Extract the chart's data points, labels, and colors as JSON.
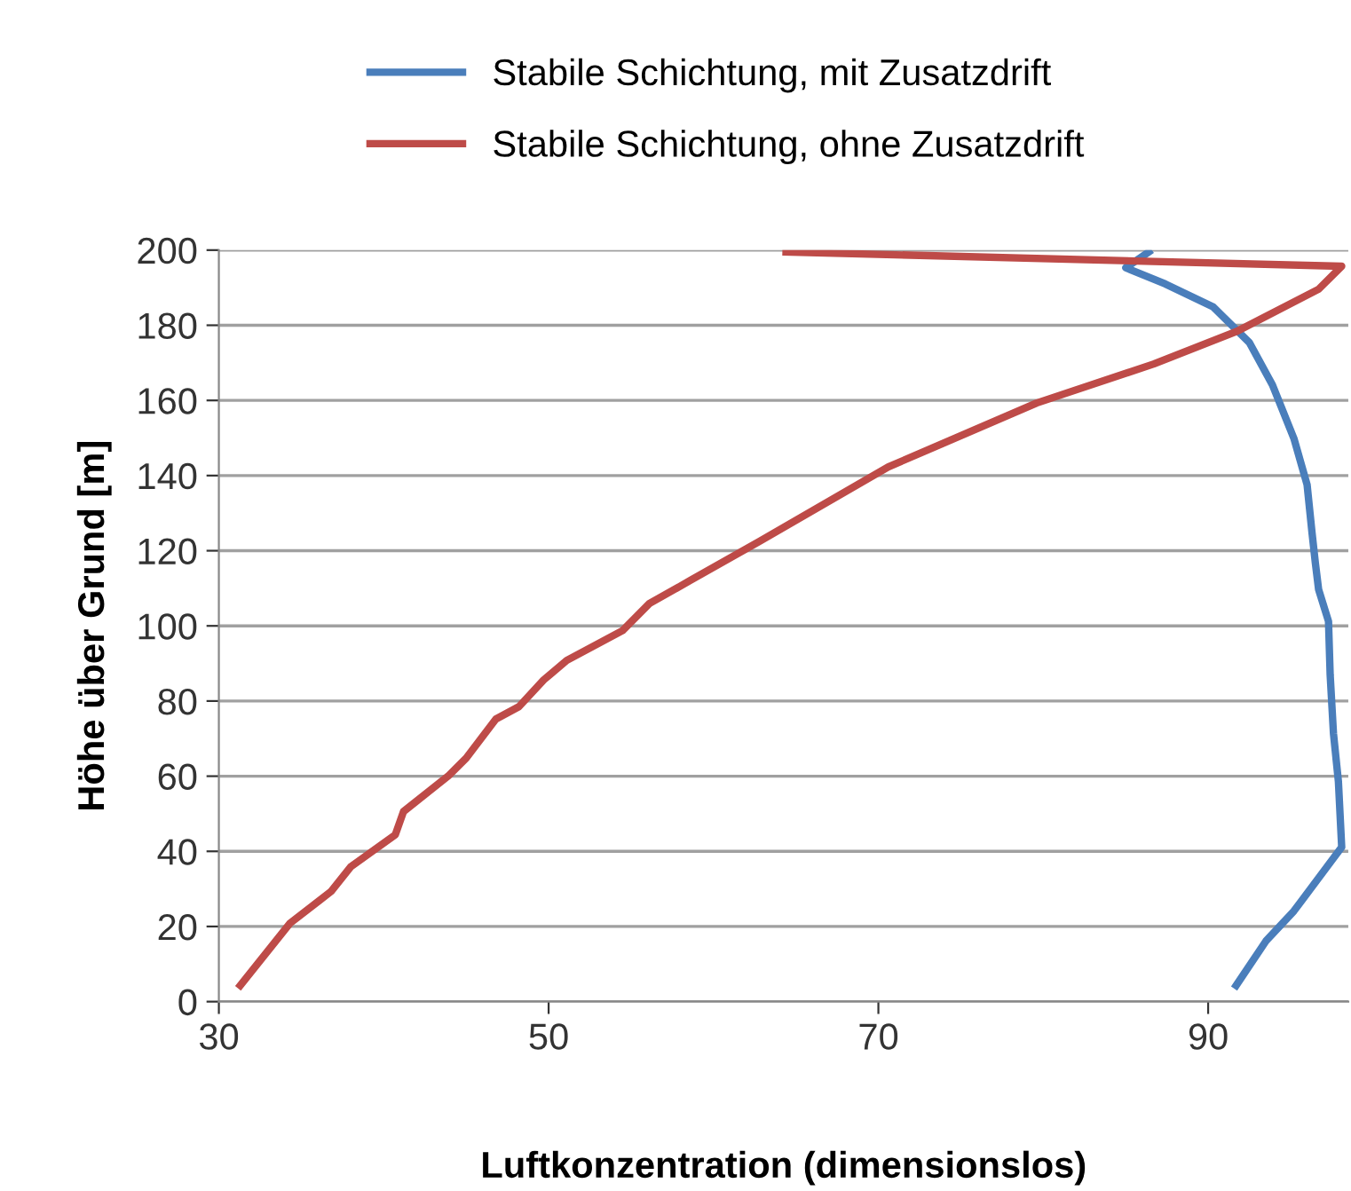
{
  "chart_data": {
    "type": "line",
    "xlabel": "Luftkonzentration (dimensionslos)",
    "ylabel": "Höhe über Grund [m]",
    "xlim": [
      30,
      98.5
    ],
    "xticks": [
      30,
      50,
      70,
      90
    ],
    "ylim": [
      0,
      200
    ],
    "yticks": [
      0,
      20,
      40,
      60,
      80,
      100,
      120,
      140,
      160,
      180,
      200
    ],
    "grid": "y",
    "legend": "top",
    "marker": "none",
    "line_style": "solid",
    "series": [
      {
        "name": "Stabile Schichtung, mit Zusatzdrift",
        "color": "#4a7ebb",
        "x": [
          91.7,
          93.5,
          95.2,
          98.1,
          97.9,
          97.6,
          97.4,
          97.3,
          96.7,
          96.5,
          96.3,
          96.0,
          95.2,
          93.9,
          92.5,
          90.3,
          87.4,
          85.0,
          86.4
        ],
        "values": [
          4.3,
          16.1,
          24.1,
          41.1,
          58.6,
          71.4,
          87,
          101.2,
          109.7,
          116.8,
          124.8,
          137.6,
          149.9,
          164.1,
          175.4,
          184.9,
          191,
          195.3,
          199.5
        ]
      },
      {
        "name": "Stabile Schichtung, ohne Zusatzdrift",
        "color": "#be4b48",
        "x": [
          31.3,
          34.3,
          36.8,
          38.0,
          40.7,
          41.2,
          43.9,
          45.0,
          46.8,
          48.2,
          49.7,
          51.1,
          54.5,
          56.1,
          58.6,
          62.8,
          70.6,
          79.6,
          86.7,
          91.7,
          96.7,
          98.1,
          64.4
        ],
        "values": [
          4.3,
          20.8,
          29.3,
          35.9,
          44.4,
          50.6,
          60.0,
          64.8,
          75.2,
          78.5,
          85.6,
          90.8,
          98.8,
          105.9,
          112.1,
          122.5,
          142.3,
          159.3,
          169.7,
          178.3,
          189.6,
          195.7,
          199.5
        ]
      }
    ]
  }
}
